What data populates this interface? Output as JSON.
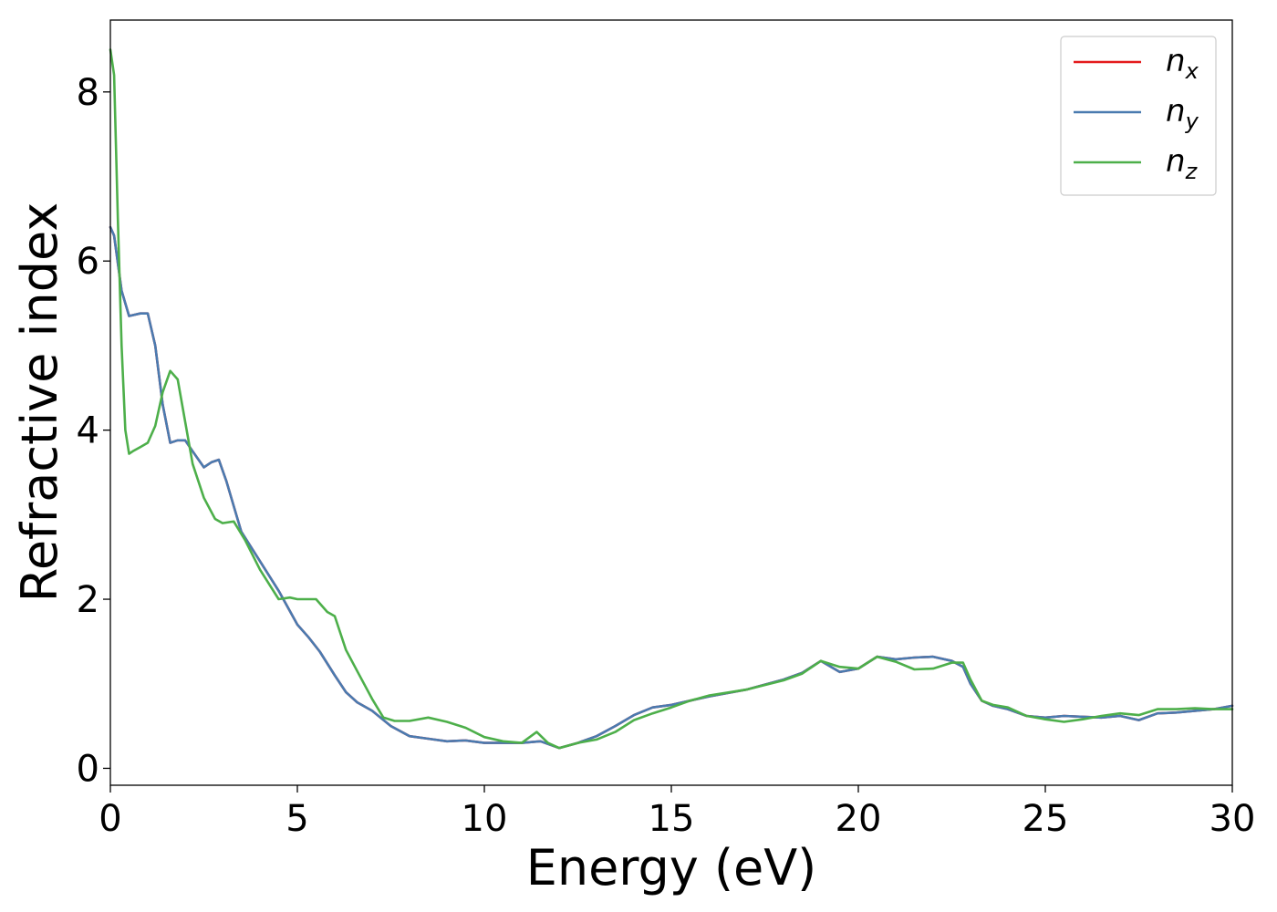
{
  "chart_data": {
    "type": "line",
    "title": "",
    "xlabel": "Energy (eV)",
    "ylabel": "Refractive index",
    "xlim": [
      0,
      30
    ],
    "ylim": [
      -0.2,
      8.85
    ],
    "xticks": [
      0,
      5,
      10,
      15,
      20,
      25,
      30
    ],
    "yticks": [
      0,
      2,
      4,
      6,
      8
    ],
    "grid": false,
    "legend_position": "top-right",
    "series": [
      {
        "name": "n_x",
        "label_base": "n",
        "label_sub": "x",
        "color": "#e41a1c",
        "x": [
          0,
          0.1,
          0.3,
          0.5,
          0.8,
          1.0,
          1.2,
          1.4,
          1.6,
          1.8,
          2.0,
          2.2,
          2.5,
          2.7,
          2.9,
          3.1,
          3.5,
          4.0,
          4.5,
          5.0,
          5.3,
          5.6,
          6.0,
          6.3,
          6.6,
          7.0,
          7.5,
          8.0,
          8.5,
          9.0,
          9.5,
          10.0,
          10.5,
          11.0,
          11.5,
          12.0,
          12.5,
          13.0,
          13.5,
          14.0,
          14.5,
          15.0,
          15.5,
          16.0,
          17.0,
          18.0,
          18.5,
          19.0,
          19.5,
          20.0,
          20.5,
          21.0,
          21.5,
          22.0,
          22.5,
          22.8,
          23.0,
          23.3,
          23.6,
          24.0,
          24.5,
          25.0,
          25.5,
          26.0,
          26.5,
          27.0,
          27.5,
          28.0,
          28.5,
          29.0,
          29.5,
          30.0
        ],
        "y": [
          6.4,
          6.3,
          5.65,
          5.35,
          5.38,
          5.38,
          5.0,
          4.3,
          3.85,
          3.88,
          3.88,
          3.75,
          3.56,
          3.62,
          3.65,
          3.4,
          2.8,
          2.45,
          2.1,
          1.7,
          1.55,
          1.38,
          1.1,
          0.9,
          0.78,
          0.68,
          0.5,
          0.38,
          0.35,
          0.32,
          0.33,
          0.3,
          0.3,
          0.3,
          0.32,
          0.24,
          0.3,
          0.38,
          0.5,
          0.63,
          0.72,
          0.75,
          0.8,
          0.85,
          0.93,
          1.05,
          1.13,
          1.27,
          1.14,
          1.18,
          1.32,
          1.29,
          1.31,
          1.32,
          1.27,
          1.2,
          1.0,
          0.8,
          0.74,
          0.7,
          0.62,
          0.6,
          0.62,
          0.61,
          0.6,
          0.62,
          0.57,
          0.65,
          0.66,
          0.68,
          0.7,
          0.74
        ]
      },
      {
        "name": "n_y",
        "label_base": "n",
        "label_sub": "y",
        "color": "#4a7bb0",
        "x": [
          0,
          0.1,
          0.3,
          0.5,
          0.8,
          1.0,
          1.2,
          1.4,
          1.6,
          1.8,
          2.0,
          2.2,
          2.5,
          2.7,
          2.9,
          3.1,
          3.5,
          4.0,
          4.5,
          5.0,
          5.3,
          5.6,
          6.0,
          6.3,
          6.6,
          7.0,
          7.5,
          8.0,
          8.5,
          9.0,
          9.5,
          10.0,
          10.5,
          11.0,
          11.5,
          12.0,
          12.5,
          13.0,
          13.5,
          14.0,
          14.5,
          15.0,
          15.5,
          16.0,
          17.0,
          18.0,
          18.5,
          19.0,
          19.5,
          20.0,
          20.5,
          21.0,
          21.5,
          22.0,
          22.5,
          22.8,
          23.0,
          23.3,
          23.6,
          24.0,
          24.5,
          25.0,
          25.5,
          26.0,
          26.5,
          27.0,
          27.5,
          28.0,
          28.5,
          29.0,
          29.5,
          30.0
        ],
        "y": [
          6.4,
          6.3,
          5.65,
          5.35,
          5.38,
          5.38,
          5.0,
          4.3,
          3.85,
          3.88,
          3.88,
          3.75,
          3.56,
          3.62,
          3.65,
          3.4,
          2.8,
          2.45,
          2.1,
          1.7,
          1.55,
          1.38,
          1.1,
          0.9,
          0.78,
          0.68,
          0.5,
          0.38,
          0.35,
          0.32,
          0.33,
          0.3,
          0.3,
          0.3,
          0.32,
          0.24,
          0.3,
          0.38,
          0.5,
          0.63,
          0.72,
          0.75,
          0.8,
          0.85,
          0.93,
          1.05,
          1.13,
          1.27,
          1.14,
          1.18,
          1.32,
          1.29,
          1.31,
          1.32,
          1.27,
          1.2,
          1.0,
          0.8,
          0.74,
          0.7,
          0.62,
          0.6,
          0.62,
          0.61,
          0.6,
          0.62,
          0.57,
          0.65,
          0.66,
          0.68,
          0.7,
          0.74
        ]
      },
      {
        "name": "n_z",
        "label_base": "n",
        "label_sub": "z",
        "color": "#4daf4a",
        "x": [
          0,
          0.1,
          0.2,
          0.3,
          0.4,
          0.5,
          0.6,
          0.8,
          1.0,
          1.2,
          1.4,
          1.6,
          1.8,
          2.0,
          2.2,
          2.5,
          2.8,
          3.0,
          3.3,
          3.6,
          4.0,
          4.5,
          4.8,
          5.0,
          5.3,
          5.5,
          5.8,
          6.0,
          6.3,
          6.6,
          7.0,
          7.3,
          7.6,
          8.0,
          8.5,
          9.0,
          9.5,
          10.0,
          10.5,
          11.0,
          11.4,
          11.7,
          12.0,
          12.5,
          13.0,
          13.5,
          14.0,
          14.5,
          15.0,
          15.5,
          16.0,
          17.0,
          18.0,
          18.5,
          19.0,
          19.5,
          20.0,
          20.5,
          21.0,
          21.5,
          22.0,
          22.5,
          22.8,
          23.0,
          23.3,
          23.6,
          24.0,
          24.5,
          25.0,
          25.5,
          26.0,
          26.5,
          27.0,
          27.5,
          28.0,
          28.5,
          29.0,
          29.5,
          30.0
        ],
        "y": [
          8.5,
          8.2,
          6.5,
          5.0,
          4.0,
          3.72,
          3.75,
          3.8,
          3.85,
          4.05,
          4.45,
          4.7,
          4.6,
          4.1,
          3.6,
          3.2,
          2.95,
          2.9,
          2.92,
          2.7,
          2.35,
          2.0,
          2.02,
          2.0,
          2.0,
          2.0,
          1.85,
          1.8,
          1.4,
          1.15,
          0.82,
          0.6,
          0.56,
          0.56,
          0.6,
          0.55,
          0.48,
          0.37,
          0.32,
          0.3,
          0.43,
          0.3,
          0.24,
          0.3,
          0.34,
          0.43,
          0.57,
          0.65,
          0.72,
          0.8,
          0.86,
          0.93,
          1.04,
          1.12,
          1.27,
          1.2,
          1.18,
          1.32,
          1.26,
          1.17,
          1.18,
          1.25,
          1.25,
          1.05,
          0.8,
          0.75,
          0.72,
          0.62,
          0.58,
          0.55,
          0.58,
          0.62,
          0.65,
          0.63,
          0.7,
          0.7,
          0.71,
          0.7,
          0.7
        ]
      }
    ]
  }
}
